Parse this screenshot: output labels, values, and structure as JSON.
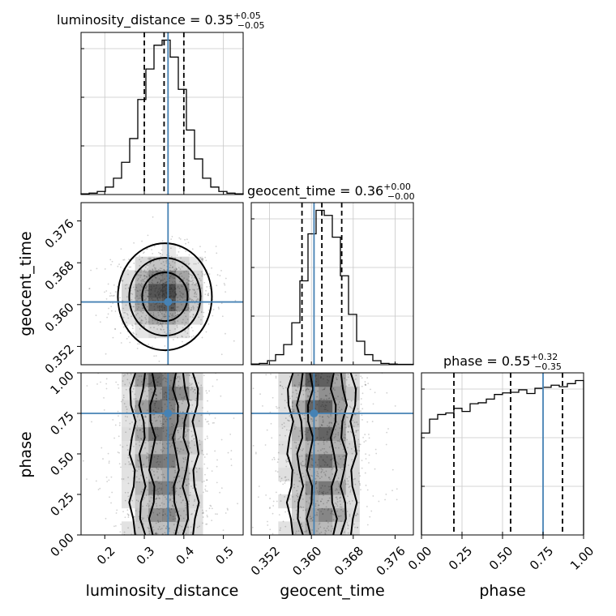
{
  "chart_data": {
    "type": "corner",
    "parameters": [
      "luminosity_distance",
      "geocent_time",
      "phase"
    ],
    "colors": {
      "truth": "#4682b4",
      "histogram": "#000000",
      "grid": "#c8c8c8"
    },
    "titles": [
      {
        "name": "luminosity_distance",
        "median": "0.35",
        "plus": "+0.05",
        "minus": "−0.05"
      },
      {
        "name": "geocent_time",
        "median": "0.36",
        "plus": "+0.00",
        "minus": "−0.00"
      },
      {
        "name": "phase",
        "median": "0.55",
        "plus": "+0.32",
        "minus": "−0.35"
      }
    ],
    "truths": [
      0.36,
      0.3605,
      0.75
    ],
    "ranges": [
      [
        0.14,
        0.55
      ],
      [
        0.3485,
        0.3795
      ],
      [
        0.0,
        1.0
      ]
    ],
    "quantiles": [
      [
        0.3,
        0.35,
        0.4
      ],
      [
        0.3582,
        0.362,
        0.3658
      ],
      [
        0.2,
        0.55,
        0.87
      ]
    ],
    "ticks": [
      [
        "0.2",
        "0.3",
        "0.4",
        "0.5"
      ],
      [
        "0.352",
        "0.360",
        "0.368",
        "0.376"
      ],
      [
        "0.00",
        "0.25",
        "0.50",
        "0.75",
        "1.00"
      ]
    ],
    "tick_values": [
      [
        0.2,
        0.3,
        0.4,
        0.5
      ],
      [
        0.352,
        0.36,
        0.368,
        0.376
      ],
      [
        0.0,
        0.25,
        0.5,
        0.75,
        1.0
      ]
    ],
    "hist_bin_edges": [
      [
        0.14,
        0.1605,
        0.181,
        0.2015,
        0.222,
        0.2425,
        0.263,
        0.2835,
        0.304,
        0.3245,
        0.345,
        0.3655,
        0.386,
        0.4065,
        0.427,
        0.4475,
        0.468,
        0.4885,
        0.509,
        0.5295,
        0.55
      ],
      [
        0.3485,
        0.35005,
        0.3516,
        0.35315,
        0.3547,
        0.35625,
        0.3578,
        0.35935,
        0.3609,
        0.36245,
        0.364,
        0.36555,
        0.3671,
        0.36865,
        0.3702,
        0.37175,
        0.3733,
        0.37485,
        0.3764,
        0.37795,
        0.3795
      ],
      [
        0.0,
        0.05,
        0.1,
        0.15,
        0.2,
        0.25,
        0.3,
        0.35,
        0.4,
        0.45,
        0.5,
        0.55,
        0.6,
        0.65,
        0.7,
        0.75,
        0.8,
        0.85,
        0.9,
        0.95,
        1.0
      ]
    ],
    "hist_counts": [
      [
        2,
        4,
        9,
        22,
        48,
        95,
        165,
        280,
        370,
        440,
        455,
        405,
        310,
        190,
        105,
        48,
        22,
        9,
        4,
        2
      ],
      [
        2,
        4,
        12,
        30,
        60,
        125,
        250,
        390,
        460,
        445,
        380,
        265,
        150,
        70,
        30,
        12,
        4,
        2,
        1,
        1
      ],
      [
        330,
        375,
        390,
        395,
        410,
        400,
        425,
        428,
        440,
        455,
        460,
        462,
        470,
        458,
        475,
        478,
        485,
        480,
        490,
        500
      ]
    ],
    "contour_levels": [
      "0.5",
      "1.0",
      "1.5",
      "2.0"
    ],
    "grid": true
  }
}
